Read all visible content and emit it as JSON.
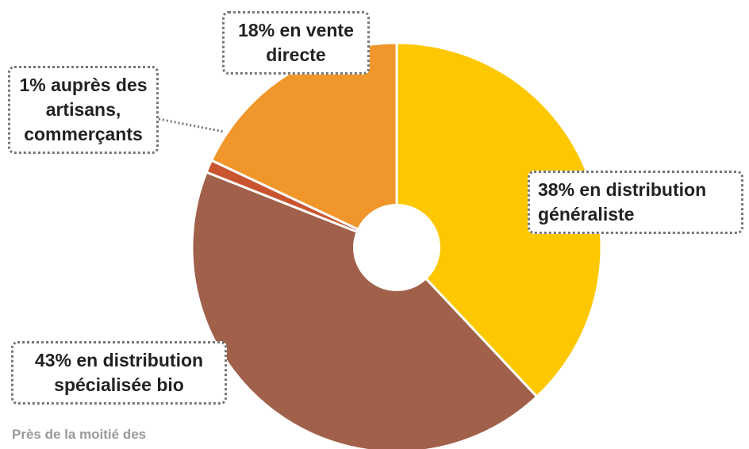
{
  "chart_data": {
    "type": "pie",
    "values": [
      38,
      43,
      1,
      18
    ],
    "value_labels": [
      "38% en distribution généraliste",
      "43% en distribution spécialisée bio",
      "1% auprès des artisans, commerçants",
      "18% en vente directe"
    ],
    "colors": [
      "#fdc800",
      "#a0604a",
      "#c8552f",
      "#f0962a"
    ],
    "caption": "Près de la moitié des"
  }
}
